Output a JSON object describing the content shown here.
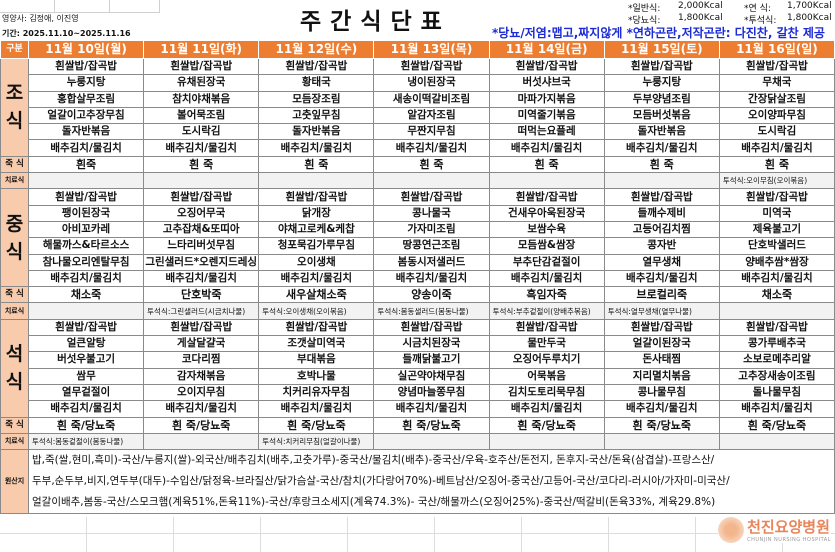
{
  "header": {
    "title": "주간식단표",
    "nutritionists": "영양사: 김정애, 이진영",
    "period": "기간: 2025.11.10~2025.11.16",
    "calories": [
      {
        "label": "*일반식:",
        "value": "2,000Kcal"
      },
      {
        "label": "*연 식:",
        "value": "1,700Kcal"
      },
      {
        "label": "*당뇨식:",
        "value": "1,800Kcal"
      },
      {
        "label": "*투석식:",
        "value": "1,800Kcal"
      }
    ],
    "note": "*당뇨/저염:맵고,짜지않게  *연하곤란,저작곤란: 다진찬, 갈찬 제공"
  },
  "labels": {
    "category": "구분",
    "breakfast": "조식",
    "lunch": "중식",
    "dinner": "석식",
    "porridge": "죽 식",
    "therapy": "치료식",
    "origin": "원산지"
  },
  "days": [
    {
      "date": "11월 10일(월)",
      "breakfast": [
        "흰쌀밥/잡곡밥",
        "누룽지탕",
        "홍합살무조림",
        "얼갈이고추장무침",
        "돌자반볶음",
        "배추김치/물김치"
      ],
      "breakfast_porridge": "흰죽",
      "breakfast_therapy": "",
      "lunch": [
        "흰쌀밥/잡곡밥",
        "팽이된장국",
        "아비꼬카레",
        "해물까스&타르소스",
        "참나물오리엔탈무침",
        "배추김치/물김치"
      ],
      "lunch_porridge": "채소죽",
      "lunch_therapy": "",
      "dinner": [
        "흰쌀밥/잡곡밥",
        "얼큰알탕",
        "버섯우불고기",
        "쌈무",
        "열무겉절이",
        "배추김치/물김치"
      ],
      "dinner_porridge": "흰 죽/당뇨죽",
      "dinner_therapy": "투석식:봄동겉절이(봄동나물)"
    },
    {
      "date": "11월 11일(화)",
      "breakfast": [
        "흰쌀밥/잡곡밥",
        "유채된장국",
        "참치야채볶음",
        "볼어묵조림",
        "도시락김",
        "배추김치/물김치"
      ],
      "breakfast_porridge": "흰 죽",
      "breakfast_therapy": "",
      "lunch": [
        "흰쌀밥/잡곡밥",
        "오징어무국",
        "고추잡채&또띠아",
        "느타리버섯무침",
        "그린샐러드*오렌지드레싱",
        "배추김치/물김치"
      ],
      "lunch_porridge": "단호박죽",
      "lunch_therapy": "투석식:그린샐러드(시금치나물)",
      "dinner": [
        "흰쌀밥/잡곡밥",
        "게살달걀국",
        "코다리찜",
        "감자채볶음",
        "오이지무침",
        "배추김치/물김치"
      ],
      "dinner_porridge": "흰 죽/당뇨죽",
      "dinner_therapy": ""
    },
    {
      "date": "11월 12일(수)",
      "breakfast": [
        "흰쌀밥/잡곡밥",
        "황태국",
        "모듬장조림",
        "고춧잎무침",
        "돌자반볶음",
        "배추김치/물김치"
      ],
      "breakfast_porridge": "흰 죽",
      "breakfast_therapy": "",
      "lunch": [
        "흰쌀밥/잡곡밥",
        "닭개장",
        "야채고로케&케찹",
        "청포묵김가루무침",
        "오이생채",
        "배추김치/물김치"
      ],
      "lunch_porridge": "새우살채소죽",
      "lunch_therapy": "투석식:오이생채(오이볶음)",
      "dinner": [
        "흰쌀밥/잡곡밥",
        "조갯살미역국",
        "부대볶음",
        "호박나물",
        "치커리유자무침",
        "배추김치/물김치"
      ],
      "dinner_porridge": "흰 죽/당뇨죽",
      "dinner_therapy": "투석식:치커리무침(얼갈이나물)"
    },
    {
      "date": "11월 13일(목)",
      "breakfast": [
        "흰쌀밥/잡곡밥",
        "냉이된장국",
        "새송이떡갈비조림",
        "알감자조림",
        "무짠지무침",
        "배추김치/물김치"
      ],
      "breakfast_porridge": "흰 죽",
      "breakfast_therapy": "",
      "lunch": [
        "흰쌀밥/잡곡밥",
        "콩나물국",
        "가자미조림",
        "땅콩연근조림",
        "봄동시저샐러드",
        "배추김치/물김치"
      ],
      "lunch_porridge": "양송이죽",
      "lunch_therapy": "투석식:봄동샐러드(봄동나물)",
      "dinner": [
        "흰쌀밥/잡곡밥",
        "시금치된장국",
        "들깨닭불고기",
        "실곤약야채무침",
        "양념마늘쫑무침",
        "배추김치/물김치"
      ],
      "dinner_porridge": "흰 죽/당뇨죽",
      "dinner_therapy": ""
    },
    {
      "date": "11월 14일(금)",
      "breakfast": [
        "흰쌀밥/잡곡밥",
        "버섯샤브국",
        "마파가지볶음",
        "미역줄기볶음",
        "떠먹는요플레",
        "배추김치/물김치"
      ],
      "breakfast_porridge": "흰 죽",
      "breakfast_therapy": "",
      "lunch": [
        "흰쌀밥/잡곡밥",
        "건새우아욱된장국",
        "보쌈수육",
        "모듬쌈&쌈장",
        "부추단감겉절이",
        "배추김치/물김치"
      ],
      "lunch_porridge": "흑임자죽",
      "lunch_therapy": "투석식:부추겉절이(양배추볶음)",
      "dinner": [
        "흰쌀밥/잡곡밥",
        "물만두국",
        "오징어두루치기",
        "어묵볶음",
        "김치도토리묵무침",
        "배추김치/물김치"
      ],
      "dinner_porridge": "흰 죽/당뇨죽",
      "dinner_therapy": ""
    },
    {
      "date": "11월 15일(토)",
      "breakfast": [
        "흰쌀밥/잡곡밥",
        "누룽지탕",
        "두부양념조림",
        "모듬버섯볶음",
        "돌자반볶음",
        "배추김치/물김치"
      ],
      "breakfast_porridge": "흰 죽",
      "breakfast_therapy": "",
      "lunch": [
        "흰쌀밥/잡곡밥",
        "들깨수제비",
        "고등어김치찜",
        "콩자반",
        "열무생채",
        "배추김치/물김치"
      ],
      "lunch_porridge": "브로컬리죽",
      "lunch_therapy": "투석식:열무생채(열무나물)",
      "dinner": [
        "흰쌀밥/잡곡밥",
        "얼갈이된장국",
        "돈사태찜",
        "지리멸치볶음",
        "콩나물무침",
        "배추김치/물김치"
      ],
      "dinner_porridge": "흰 죽/당뇨죽",
      "dinner_therapy": ""
    },
    {
      "date": "11월 16일(일)",
      "breakfast": [
        "흰쌀밥/잡곡밥",
        "무채국",
        "간장닭살조림",
        "오이양파무침",
        "도시락김",
        "배추김치/물김치"
      ],
      "breakfast_porridge": "흰 죽",
      "breakfast_therapy": "투석식:오이무침(오이볶음)",
      "lunch": [
        "흰쌀밥/잡곡밥",
        "미역국",
        "제육불고기",
        "단호박샐러드",
        "양배추쌈*쌈장",
        "배추김치/물김치"
      ],
      "lunch_porridge": "채소죽",
      "lunch_therapy": "",
      "dinner": [
        "흰쌀밥/잡곡밥",
        "콩가루배추국",
        "소보로메추리알",
        "고추장새송이조림",
        "돌나물무침",
        "배추김치/물김치"
      ],
      "dinner_porridge": "흰 죽/당뇨죽",
      "dinner_therapy": ""
    }
  ],
  "origin": [
    "밥,죽(쌀,현미,흑미)-국산/누룽지(쌀)-외국산/배추김치(배추,고춧가루)-중국산/물김치(배추)-중국산/우육-호주산/돈전지, 돈후지-국산/돈육(삼겹살)-프랑스산/",
    "두부,순두부,비지,연두부(대두)-수입산/닭정육-브라질산/닭가슴살-국산/참치(가다랑어70%)-베트남산/오징어-중국산/고등어-국산/코다리-러시아/가자미-미국산/",
    "얼갈이배추,봄동-국산/스모크햄(계육51%,돈육11%)-국산/후랑크소세지(계육74.3%)- 국산/해물까스(오징어25%)-중국산/떡갈비(돈육33%, 계육29.8%)"
  ],
  "logo": {
    "name": "천진요양병원",
    "sub": "CHUNJIN NURSING HOSPITAL"
  },
  "colors": {
    "header": "#ED7D31",
    "label": "#F8CBAD",
    "note": "#1C2BD6",
    "logo": "#E8855A"
  }
}
